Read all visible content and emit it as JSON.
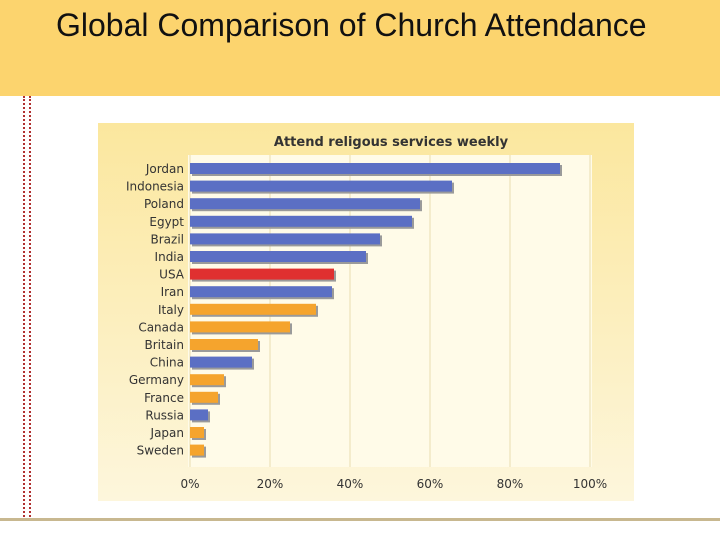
{
  "slide": {
    "title": "Global Comparison of Church Attendance"
  },
  "chart_data": {
    "type": "bar",
    "orientation": "horizontal",
    "title": "Attend religous services weekly",
    "xlabel": "",
    "ylabel": "",
    "xlim": [
      0,
      100
    ],
    "tick_values": [
      0,
      20,
      40,
      60,
      80,
      100
    ],
    "tick_labels": [
      "0%",
      "20%",
      "40%",
      "60%",
      "80%",
      "100%"
    ],
    "grid": true,
    "categories": [
      "Jordan",
      "Indonesia",
      "Poland",
      "Egypt",
      "Brazil",
      "India",
      "USA",
      "Iran",
      "Italy",
      "Canada",
      "Britain",
      "China",
      "Germany",
      "France",
      "Russia",
      "Japan",
      "Sweden"
    ],
    "values": [
      92.5,
      65.5,
      57.5,
      55.5,
      47.5,
      44,
      36,
      35.5,
      31.5,
      25,
      17,
      15.5,
      8.5,
      7,
      4.5,
      3.5,
      3.5
    ],
    "bar_colors": [
      "#5b6fc4",
      "#5b6fc4",
      "#5b6fc4",
      "#5b6fc4",
      "#5b6fc4",
      "#5b6fc4",
      "#e03030",
      "#5b6fc4",
      "#f5a42d",
      "#f5a42d",
      "#f5a42d",
      "#5b6fc4",
      "#f5a42d",
      "#f5a42d",
      "#5b6fc4",
      "#f5a42d",
      "#f5a42d"
    ]
  }
}
